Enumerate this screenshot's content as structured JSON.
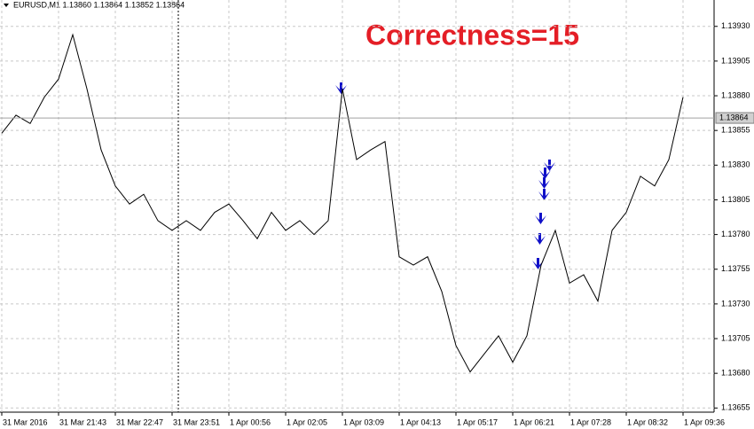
{
  "chart_data": {
    "type": "line",
    "header": "EURUSD,M1  1.13860 1.13864 1.13852 1.13864",
    "annotation": "Correctness=15",
    "categories": [
      "31 Mar 2016",
      null,
      null,
      null,
      "31 Mar 21:43",
      null,
      null,
      null,
      "31 Mar 22:47",
      null,
      null,
      null,
      "31 Mar 23:51",
      null,
      null,
      null,
      "1 Apr 00:56",
      null,
      null,
      null,
      "1 Apr 02:05",
      null,
      null,
      null,
      "1 Apr 03:09",
      null,
      null,
      null,
      "1 Apr 04:13",
      null,
      null,
      null,
      "1 Apr 05:17",
      null,
      null,
      null,
      "1 Apr 06:21",
      null,
      null,
      null,
      "1 Apr 07:28",
      null,
      null,
      null,
      "1 Apr 08:32",
      null,
      null,
      null,
      "1 Apr 09:36"
    ],
    "values": [
      1.13853,
      1.13866,
      1.1386,
      1.13879,
      1.13892,
      1.13924,
      1.13885,
      1.13841,
      1.13815,
      1.13802,
      1.13809,
      1.1379,
      1.13783,
      1.1379,
      1.13783,
      1.13796,
      1.13802,
      1.1379,
      1.13777,
      1.13796,
      1.13783,
      1.1379,
      1.1378,
      1.1379,
      1.13885,
      1.13834,
      1.13841,
      1.13847,
      1.13764,
      1.13758,
      1.13764,
      1.13739,
      1.137,
      1.13681,
      1.13694,
      1.13707,
      1.13688,
      1.13707,
      1.13758,
      1.13783,
      1.13745,
      1.13751,
      1.13732,
      1.13783,
      1.13796,
      1.13822,
      1.13815,
      1.13834,
      1.13879
    ],
    "color": "#000000",
    "current_price": 1.13864,
    "ylim": [
      1.13652,
      1.13949
    ],
    "yticks": [
      {
        "value": 1.1393,
        "label": "1.13930"
      },
      1.13905,
      {
        "value": 1.1388,
        "label": "1.13880"
      },
      1.13855,
      {
        "value": 1.1383,
        "label": "1.13830"
      },
      1.13805,
      {
        "value": 1.1378,
        "label": "1.13780"
      },
      1.13755,
      {
        "value": 1.1373,
        "label": "1.13730"
      },
      1.13705,
      {
        "value": 1.1368,
        "label": "1.13680"
      },
      1.13655
    ],
    "grid": true
  }
}
